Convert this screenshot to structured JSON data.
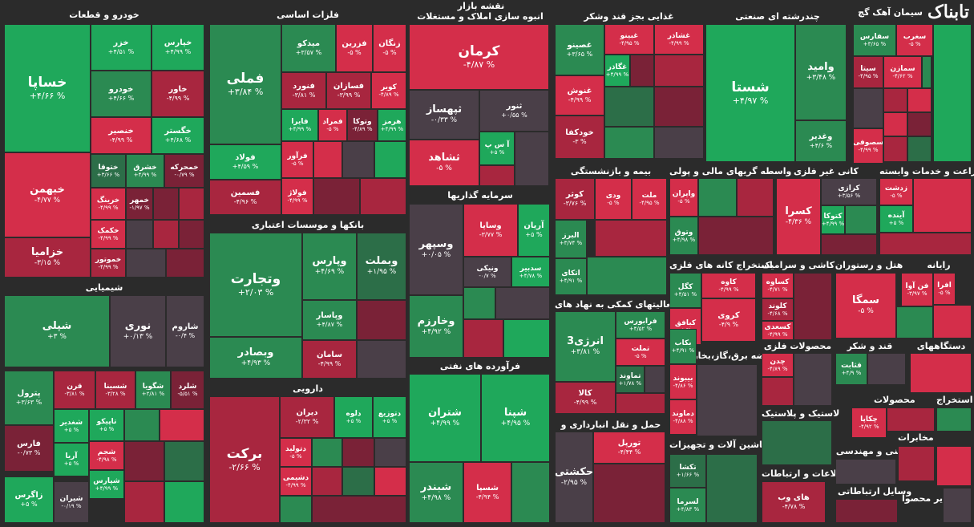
{
  "header": {
    "market_title": "نقشه بازار",
    "logo_text": "تابناک"
  },
  "colors": {
    "background": "#2b2b2b",
    "pos_strong": "#1fa85b",
    "pos_mid": "#2b8a52",
    "pos_weak": "#2c6e48",
    "neg_strong": "#d42e4a",
    "neg_mid": "#a8263f",
    "neg_weak": "#7a2237",
    "neutral": "#4a3f48"
  },
  "chart_data": {
    "type": "treemap",
    "unit": "%",
    "sectors": [
      {
        "name": "خودرو و قطعات"
      },
      {
        "name": "فلزات اساسی"
      },
      {
        "name": "انبوه سازی املاک و مستغلات"
      },
      {
        "name": "غذایی بجز قند وشکر"
      },
      {
        "name": "چندرشته ای صنعتی"
      },
      {
        "name": "سیمان آهک گچ"
      },
      {
        "name": "شیمیایی"
      },
      {
        "name": "بانکها و موسسات اعتباری"
      },
      {
        "name": "سرمایه گذاریها"
      },
      {
        "name": "بیمه و بازنشستگی"
      },
      {
        "name": "واسطه گریهای مالی و پولی"
      },
      {
        "name": "کانی غیر فلزی"
      },
      {
        "name": "زراعت و خدمات وابسته"
      },
      {
        "name": "استخراج کانه های فلزی"
      },
      {
        "name": "کاشی و سرامیک"
      },
      {
        "name": "هتل و رستوران"
      },
      {
        "name": "رایانه"
      },
      {
        "name": "فعالیتهای کمکی به نهاد های"
      },
      {
        "name": "دارویی"
      },
      {
        "name": "فرآورده های نفتی"
      },
      {
        "name": "حمل و نقل انبارداری و"
      },
      {
        "name": "عرضه برق،گاز،بخار و آب"
      },
      {
        "name": "محصولات فلزی"
      },
      {
        "name": "قند و شکر"
      },
      {
        "name": "دستگاههای"
      },
      {
        "name": "لاستیک و پلاستیک"
      },
      {
        "name": "ماشین آلات و تجهیزات"
      },
      {
        "name": "فنی و مهندسی"
      },
      {
        "name": "اطلاعات و ارتباطات"
      },
      {
        "name": "محصولات"
      },
      {
        "name": "استخراج"
      },
      {
        "name": "مخابرات"
      },
      {
        "name": "وسایل ارتباطاتی"
      },
      {
        "name": "سایر محصوا"
      }
    ],
    "tiles": [
      {
        "name": "خساپا",
        "change": "+۴/۶۶ %",
        "fill": "pos_strong"
      },
      {
        "name": "خبهمن",
        "change": "-۴/۷۷ %",
        "fill": "neg_strong"
      },
      {
        "name": "خزامیا",
        "change": "-۳/۱۵ %",
        "fill": "neg_mid"
      },
      {
        "name": "خزر",
        "change": "+۴/۵۱ %",
        "fill": "pos_strong"
      },
      {
        "name": "خپارس",
        "change": "+۴/۹۹ %",
        "fill": "pos_strong"
      },
      {
        "name": "خودرو",
        "change": "+۴/۶۶ %",
        "fill": "pos_mid"
      },
      {
        "name": "خاور",
        "change": "-۴/۹۹ %",
        "fill": "neg_mid"
      },
      {
        "name": "خنصیر",
        "change": "-۴/۹۹ %",
        "fill": "neg_strong"
      },
      {
        "name": "خگستر",
        "change": "+۴/۶۸ %",
        "fill": "pos_strong"
      },
      {
        "name": "ختوقا",
        "change": "+۳/۶۶ %",
        "fill": "pos_weak"
      },
      {
        "name": "خشرق",
        "change": "+۴/۹۹ %",
        "fill": "pos_mid"
      },
      {
        "name": "خمحرکه",
        "change": "-۰/۷۹ %",
        "fill": "neg_weak"
      },
      {
        "name": "خرینگ",
        "change": "-۴/۹۹ %",
        "fill": "neg_strong"
      },
      {
        "name": "خمهر",
        "change": "-۱/۹۷ %",
        "fill": "neg_weak"
      },
      {
        "name": "خکمک",
        "change": "-۴/۹۹ %",
        "fill": "neg_strong"
      },
      {
        "name": "خموتور",
        "change": "-۴/۹۹ %",
        "fill": "neg_mid"
      },
      {
        "name": "فملی",
        "change": "+۳/۸۴ %",
        "fill": "pos_mid"
      },
      {
        "name": "فسمین",
        "change": "-۴/۹۶ %",
        "fill": "neg_mid"
      },
      {
        "name": "میدکو",
        "change": "+۳/۵۷ %",
        "fill": "pos_mid"
      },
      {
        "name": "فزرین",
        "change": "-۵ %",
        "fill": "neg_strong"
      },
      {
        "name": "زنگان",
        "change": "-۵ %",
        "fill": "neg_strong"
      },
      {
        "name": "فنورد",
        "change": "-۳/۸۱ %",
        "fill": "neg_mid"
      },
      {
        "name": "فسازان",
        "change": "-۳/۹۹ %",
        "fill": "neg_mid"
      },
      {
        "name": "کویر",
        "change": "-۴/۸۹ %",
        "fill": "neg_strong"
      },
      {
        "name": "فایرا",
        "change": "+۴/۹۹ %",
        "fill": "pos_strong"
      },
      {
        "name": "فمراد",
        "change": "-۵ %",
        "fill": "neg_strong"
      },
      {
        "name": "وتوکا",
        "change": "-۴/۸۹ %",
        "fill": "neg_weak"
      },
      {
        "name": "هرمز",
        "change": "+۴/۹۹ %",
        "fill": "pos_strong"
      },
      {
        "name": "فولاد",
        "change": "+۴/۵۹ %",
        "fill": "pos_strong"
      },
      {
        "name": "فرآور",
        "change": "-۵ %",
        "fill": "neg_strong"
      },
      {
        "name": "فولاژ",
        "change": "-۴/۹۹ %",
        "fill": "neg_strong"
      },
      {
        "name": "کرمان",
        "change": "-۴/۸۷ %",
        "fill": "neg_strong"
      },
      {
        "name": "ثپهساز",
        "change": "-۰/۳۳ %",
        "fill": "neutral"
      },
      {
        "name": "ثنور",
        "change": "+۰/۵۵ %",
        "fill": "neutral"
      },
      {
        "name": "ثشاهد",
        "change": "-۵ %",
        "fill": "neg_strong"
      },
      {
        "name": "آ س پ",
        "change": "+۵ %",
        "fill": "pos_strong"
      },
      {
        "name": "غصینو",
        "change": "+۳/۶۵ %",
        "fill": "pos_mid"
      },
      {
        "name": "غبینو",
        "change": "-۴/۹۵ %",
        "fill": "neg_strong"
      },
      {
        "name": "غشاذر",
        "change": "-۴/۹۹ %",
        "fill": "neg_strong"
      },
      {
        "name": "غگاذر",
        "change": "+۴/۹۹ %",
        "fill": "pos_strong"
      },
      {
        "name": "غنوش",
        "change": "-۴/۹۹ %",
        "fill": "neg_strong"
      },
      {
        "name": "خودکفا",
        "change": "-۳ %",
        "fill": "neg_mid"
      },
      {
        "name": "شستا",
        "change": "+۴/۹۷ %",
        "fill": "pos_strong"
      },
      {
        "name": "وامید",
        "change": "+۳/۴۸ %",
        "fill": "pos_mid"
      },
      {
        "name": "وغدیر",
        "change": "+۴/۶ %",
        "fill": "pos_mid"
      },
      {
        "name": "سفارس",
        "change": "+۳/۶۵ %",
        "fill": "pos_mid"
      },
      {
        "name": "سغرب",
        "change": "-۵ %",
        "fill": "neg_strong"
      },
      {
        "name": "سیتا",
        "change": "-۴/۹۵ %",
        "fill": "neg_mid"
      },
      {
        "name": "سمازن",
        "change": "-۴/۶۲ %",
        "fill": "neg_strong"
      },
      {
        "name": "سصوفی",
        "change": "-۴/۹۹ %",
        "fill": "neg_strong"
      },
      {
        "name": "شپلی",
        "change": "+۳ %",
        "fill": "pos_mid"
      },
      {
        "name": "نوری",
        "change": "+۰/۱۳ %",
        "fill": "neutral"
      },
      {
        "name": "شاروم",
        "change": "-۰/۴ %",
        "fill": "neutral"
      },
      {
        "name": "پترول",
        "change": "+۳/۶۳ %",
        "fill": "pos_mid"
      },
      {
        "name": "قرن",
        "change": "-۳/۸۱ %",
        "fill": "neg_mid"
      },
      {
        "name": "شسینا",
        "change": "-۳/۲۸ %",
        "fill": "neg_mid"
      },
      {
        "name": "شگویا",
        "change": "+۲/۸۱ %",
        "fill": "pos_mid"
      },
      {
        "name": "شلرد",
        "change": "-۵/۵۱ %",
        "fill": "neg_weak"
      },
      {
        "name": "شغدیر",
        "change": "+۵ %",
        "fill": "pos_strong"
      },
      {
        "name": "تاپیکو",
        "change": "+۵ %",
        "fill": "pos_strong"
      },
      {
        "name": "فارس",
        "change": "-۰/۷۳ %",
        "fill": "neg_weak"
      },
      {
        "name": "آریا",
        "change": "+۵ %",
        "fill": "pos_strong"
      },
      {
        "name": "شجم",
        "change": "-۴/۹۸ %",
        "fill": "neg_strong"
      },
      {
        "name": "شپارس",
        "change": "+۴/۹۹ %",
        "fill": "pos_strong"
      },
      {
        "name": "زاگرس",
        "change": "+۵ %",
        "fill": "pos_strong"
      },
      {
        "name": "شیران",
        "change": "-۰/۱۹ %",
        "fill": "neutral"
      },
      {
        "name": "وتجارت",
        "change": "+۲/۰۳ %",
        "fill": "pos_mid"
      },
      {
        "name": "وپارس",
        "change": "+۴/۶۹ %",
        "fill": "pos_mid"
      },
      {
        "name": "وبملت",
        "change": "+۱/۹۵ %",
        "fill": "pos_weak"
      },
      {
        "name": "وپاسار",
        "change": "+۴/۸۷ %",
        "fill": "pos_mid"
      },
      {
        "name": "وبصادر",
        "change": "+۴/۹۳ %",
        "fill": "pos_mid"
      },
      {
        "name": "سامان",
        "change": "-۴/۹۹ %",
        "fill": "neg_mid"
      },
      {
        "name": "برکت",
        "change": "-۲/۶۶ %",
        "fill": "neg_mid"
      },
      {
        "name": "دیران",
        "change": "-۲/۳۲ %",
        "fill": "neg_mid"
      },
      {
        "name": "دلوه",
        "change": "+۵ %",
        "fill": "pos_strong"
      },
      {
        "name": "دتوزیع",
        "change": "+۵ %",
        "fill": "pos_strong"
      },
      {
        "name": "دتولید",
        "change": "-۵ %",
        "fill": "neg_strong"
      },
      {
        "name": "دشیمی",
        "change": "-۴/۹۹ %",
        "fill": "neg_strong"
      },
      {
        "name": "وسپهر",
        "change": "+۰/۰۵ %",
        "fill": "neutral"
      },
      {
        "name": "وساپا",
        "change": "-۳/۷۷ %",
        "fill": "neg_strong"
      },
      {
        "name": "آریان",
        "change": "+۵ %",
        "fill": "pos_strong"
      },
      {
        "name": "ونیکی",
        "change": "-۰/۷ %",
        "fill": "neutral"
      },
      {
        "name": "سدبیر",
        "change": "+۴/۷۸ %",
        "fill": "pos_strong"
      },
      {
        "name": "وخارزم",
        "change": "+۴/۹۲ %",
        "fill": "pos_mid"
      },
      {
        "name": "شتران",
        "change": "+۴/۹۹ %",
        "fill": "pos_strong"
      },
      {
        "name": "شپنا",
        "change": "+۴/۹۵ %",
        "fill": "pos_strong"
      },
      {
        "name": "شبندر",
        "change": "+۴/۹۸ %",
        "fill": "pos_mid"
      },
      {
        "name": "شسپا",
        "change": "-۴/۹۴ %",
        "fill": "neg_strong"
      },
      {
        "name": "کوثر",
        "change": "-۳/۷۶ %",
        "fill": "neg_mid"
      },
      {
        "name": "ودی",
        "change": "-۵ %",
        "fill": "neg_strong"
      },
      {
        "name": "ملت",
        "change": "-۴/۹۵ %",
        "fill": "neg_strong"
      },
      {
        "name": "البرز",
        "change": "+۳/۷۴ %",
        "fill": "pos_mid"
      },
      {
        "name": "اتکای",
        "change": "+۴/۹۱ %",
        "fill": "pos_mid"
      },
      {
        "name": "وایران",
        "change": "-۵ %",
        "fill": "neg_strong"
      },
      {
        "name": "وتوق",
        "change": "+۴/۹۸ %",
        "fill": "pos_mid"
      },
      {
        "name": "کرازی",
        "change": "+۳/۵۶ %",
        "fill": "neutral"
      },
      {
        "name": "کسرا",
        "change": "-۴/۳۶ %",
        "fill": "neg_strong"
      },
      {
        "name": "کتوکا",
        "change": "+۴/۹۹ %",
        "fill": "pos_strong"
      },
      {
        "name": "زدشت",
        "change": "-۵ %",
        "fill": "neg_strong"
      },
      {
        "name": "آینده",
        "change": "+۵ %",
        "fill": "pos_strong"
      },
      {
        "name": "کگل",
        "change": "+۴/۵۱ %",
        "fill": "pos_mid"
      },
      {
        "name": "کاوه",
        "change": "-۴/۹۹ %",
        "fill": "neg_strong"
      },
      {
        "name": "کبافق",
        "change": "-۵ %",
        "fill": "neg_strong"
      },
      {
        "name": "کروی",
        "change": "-۴/۹ %",
        "fill": "neg_strong"
      },
      {
        "name": "کساوه",
        "change": "-۴/۷۱ %",
        "fill": "neg_strong"
      },
      {
        "name": "کلوند",
        "change": "-۴/۶۸ %",
        "fill": "neg_mid"
      },
      {
        "name": "کسعدی",
        "change": "-۴/۹۹ %",
        "fill": "neg_strong"
      },
      {
        "name": "سمگا",
        "change": "-۵ %",
        "fill": "neg_strong"
      },
      {
        "name": "فن آوا",
        "change": "-۳/۹۷ %",
        "fill": "neg_strong"
      },
      {
        "name": "افرا",
        "change": "-۵ %",
        "fill": "neg_strong"
      },
      {
        "name": "فرابورس",
        "change": "+۴/۵۲ %",
        "fill": "pos_mid"
      },
      {
        "name": "انرژی3",
        "change": "+۳/۸۱ %",
        "fill": "pos_mid"
      },
      {
        "name": "تملت",
        "change": "-۵ %",
        "fill": "neg_strong"
      },
      {
        "name": "تماوند",
        "change": "+۱/۷۸ %",
        "fill": "pos_weak"
      },
      {
        "name": "کالا",
        "change": "-۴/۹۹ %",
        "fill": "neg_mid"
      },
      {
        "name": "تورپل",
        "change": "-۴/۴۴ %",
        "fill": "neg_strong"
      },
      {
        "name": "حکشتی",
        "change": "-۲/۹۵ %",
        "fill": "neutral"
      },
      {
        "name": "بیبوند",
        "change": "-۴/۸۶ %",
        "fill": "neg_strong"
      },
      {
        "name": "دماوند",
        "change": "-۴/۸۸ %",
        "fill": "neg_strong"
      },
      {
        "name": "بکاب",
        "change": "+۴/۹۱ %",
        "fill": "pos_mid"
      },
      {
        "name": "تکشا",
        "change": "+۱/۶۶ %",
        "fill": "pos_weak"
      },
      {
        "name": "لسرما",
        "change": "+۴/۸۳ %",
        "fill": "pos_mid"
      },
      {
        "name": "چدن",
        "change": "-۴/۸۹ %",
        "fill": "neg_strong"
      },
      {
        "name": "قثابت",
        "change": "+۴/۹ %",
        "fill": "pos_mid"
      },
      {
        "name": "چکاپا",
        "change": "-۴/۹۲ %",
        "fill": "neg_strong"
      },
      {
        "name": "های وب",
        "change": "-۴/۷۸ %",
        "fill": "neg_mid"
      }
    ]
  }
}
